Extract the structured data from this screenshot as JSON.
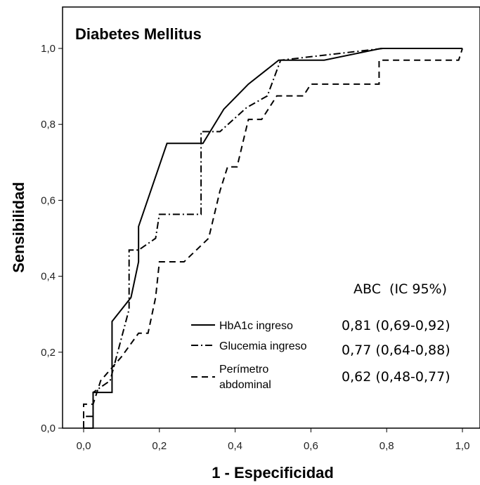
{
  "chart_data": {
    "type": "line",
    "title": "Diabetes Mellitus",
    "xlabel": "1 - Especificidad",
    "ylabel": "Sensibilidad",
    "xlim": [
      0,
      1
    ],
    "ylim": [
      0,
      1
    ],
    "x_ticks": [
      "0,0",
      "0,2",
      "0,4",
      "0,6",
      "0,8",
      "1,0"
    ],
    "y_ticks": [
      "0,0",
      "0,2",
      "0,4",
      "0,6",
      "0,8",
      "1,0"
    ],
    "legend_placement": "bottom-center",
    "series": [
      {
        "name": "HbA1c ingreso",
        "style": "solid",
        "color": "#000000",
        "points": [
          [
            0.0,
            0.0
          ],
          [
            0.025,
            0.0
          ],
          [
            0.025,
            0.094
          ],
          [
            0.075,
            0.094
          ],
          [
            0.075,
            0.281
          ],
          [
            0.125,
            0.344
          ],
          [
            0.145,
            0.438
          ],
          [
            0.145,
            0.531
          ],
          [
            0.22,
            0.75
          ],
          [
            0.315,
            0.75
          ],
          [
            0.37,
            0.84
          ],
          [
            0.435,
            0.906
          ],
          [
            0.515,
            0.969
          ],
          [
            0.635,
            0.969
          ],
          [
            0.785,
            1.0
          ],
          [
            1.0,
            1.0
          ]
        ]
      },
      {
        "name": "Glucemia ingreso",
        "style": "dashdot",
        "color": "#000000",
        "points": [
          [
            0.0,
            0.0
          ],
          [
            0.0,
            0.031
          ],
          [
            0.025,
            0.031
          ],
          [
            0.025,
            0.094
          ],
          [
            0.07,
            0.125
          ],
          [
            0.12,
            0.313
          ],
          [
            0.12,
            0.469
          ],
          [
            0.145,
            0.469
          ],
          [
            0.19,
            0.5
          ],
          [
            0.2,
            0.563
          ],
          [
            0.31,
            0.563
          ],
          [
            0.31,
            0.781
          ],
          [
            0.36,
            0.781
          ],
          [
            0.43,
            0.844
          ],
          [
            0.485,
            0.875
          ],
          [
            0.52,
            0.969
          ],
          [
            0.79,
            1.0
          ],
          [
            1.0,
            1.0
          ]
        ]
      },
      {
        "name": "Perímetro abdominal",
        "style": "dashed",
        "color": "#000000",
        "points": [
          [
            0.0,
            0.0
          ],
          [
            0.0,
            0.063
          ],
          [
            0.025,
            0.063
          ],
          [
            0.045,
            0.125
          ],
          [
            0.1,
            0.188
          ],
          [
            0.145,
            0.25
          ],
          [
            0.17,
            0.25
          ],
          [
            0.19,
            0.344
          ],
          [
            0.2,
            0.438
          ],
          [
            0.265,
            0.438
          ],
          [
            0.33,
            0.5
          ],
          [
            0.36,
            0.625
          ],
          [
            0.38,
            0.688
          ],
          [
            0.405,
            0.688
          ],
          [
            0.435,
            0.813
          ],
          [
            0.47,
            0.813
          ],
          [
            0.51,
            0.875
          ],
          [
            0.58,
            0.875
          ],
          [
            0.6,
            0.906
          ],
          [
            0.78,
            0.906
          ],
          [
            0.78,
            0.969
          ],
          [
            0.99,
            0.969
          ],
          [
            1.0,
            1.0
          ]
        ]
      }
    ],
    "auc_table": {
      "header": "ABC  (IC 95%)",
      "rows": [
        "0,81 (0,69-0,92)",
        "0,77 (0,64-0,88)",
        "0,62 (0,48-0,77)"
      ]
    },
    "legend_labels": {
      "hba1c": "HbA1c ingreso",
      "glucemia": "Glucemia ingreso",
      "perimetro_line1": "Perímetro",
      "perimetro_line2": "abdominal"
    }
  }
}
